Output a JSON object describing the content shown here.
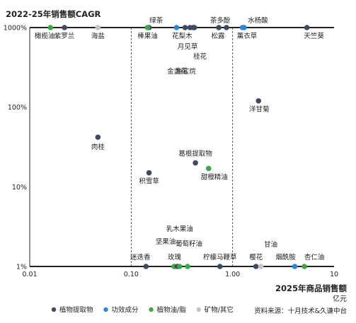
{
  "chart_data": {
    "type": "scatter",
    "ylabel": "2022-25年销售额CAGR",
    "xlabel": "2025年商品销售额",
    "xunit": "亿元",
    "xscale": "log",
    "yscale": "log",
    "xlim": [
      0.01,
      10
    ],
    "ylim": [
      1,
      1000
    ],
    "xticks": [
      {
        "v": 0.01,
        "label": "0.01"
      },
      {
        "v": 0.1,
        "label": "0.10"
      },
      {
        "v": 1,
        "label": "1.00"
      },
      {
        "v": 10,
        "label": "10"
      }
    ],
    "yticks": [
      {
        "v": 1,
        "label": "1%"
      },
      {
        "v": 10,
        "label": "10%"
      },
      {
        "v": 100,
        "label": "100%"
      },
      {
        "v": 1000,
        "label": "1000%"
      }
    ],
    "reference_lines_x": [
      0.1,
      1
    ],
    "series": [
      {
        "name": "植物提取物",
        "color": "#3d4a63"
      },
      {
        "name": "功效成分",
        "color": "#2e86d6"
      },
      {
        "name": "植物油/脂",
        "color": "#3aa845"
      },
      {
        "name": "矿物/其它",
        "color": "#c4c4c4"
      }
    ],
    "points": [
      {
        "label": "橄榄油",
        "x": 0.016,
        "y": 1000,
        "series": "植物油/脂"
      },
      {
        "label": "紫罗兰",
        "x": 0.022,
        "y": 1000,
        "series": "植物提取物"
      },
      {
        "label": "海盐",
        "x": 0.047,
        "y": 1000,
        "series": "矿物/其它"
      },
      {
        "label": "绿茶",
        "x": 0.15,
        "y": 1000,
        "series": "植物提取物"
      },
      {
        "label": "棒果油",
        "x": 0.145,
        "y": 1000,
        "series": "植物油/脂"
      },
      {
        "label": "花梨木",
        "x": 0.28,
        "y": 1000,
        "series": "功效成分"
      },
      {
        "label": "金盏花",
        "x": 0.34,
        "y": 1000,
        "series": "植物提取物"
      },
      {
        "label": "角鲨烷",
        "x": 0.38,
        "y": 1000,
        "series": "植物提取物"
      },
      {
        "label": "月见草",
        "x": 0.41,
        "y": 1000,
        "series": "植物提取物"
      },
      {
        "label": "桂花",
        "x": 0.42,
        "y": 1000,
        "series": "植物提取物"
      },
      {
        "label": "茶多酚",
        "x": 0.73,
        "y": 1000,
        "series": "植物提取物"
      },
      {
        "label": "松露",
        "x": 0.87,
        "y": 1000,
        "series": "植物提取物"
      },
      {
        "label": "水杨酸",
        "x": 1.25,
        "y": 1000,
        "series": "功效成分"
      },
      {
        "label": "薰衣草",
        "x": 1.3,
        "y": 1000,
        "series": "功效成分"
      },
      {
        "label": "天竺葵",
        "x": 5.4,
        "y": 1000,
        "series": "植物提取物"
      },
      {
        "label": "洋甘菊",
        "x": 1.8,
        "y": 120,
        "series": "植物提取物"
      },
      {
        "label": "肉桂",
        "x": 0.047,
        "y": 42,
        "series": "植物提取物"
      },
      {
        "label": "葛根提取物",
        "x": 0.43,
        "y": 20,
        "series": "植物提取物"
      },
      {
        "label": "甜橙精油",
        "x": 0.58,
        "y": 17,
        "series": "植物油/脂"
      },
      {
        "label": "积雪草",
        "x": 0.15,
        "y": 15,
        "series": "植物提取物"
      },
      {
        "label": "迷迭香",
        "x": 0.14,
        "y": 1,
        "series": "植物提取物"
      },
      {
        "label": "坚果油",
        "x": 0.265,
        "y": 1,
        "series": "植物油/脂"
      },
      {
        "label": "玫瑰",
        "x": 0.285,
        "y": 1,
        "series": "植物提取物"
      },
      {
        "label": "乳木果油",
        "x": 0.3,
        "y": 1,
        "series": "植物油/脂"
      },
      {
        "label": "葡萄籽油",
        "x": 0.36,
        "y": 1,
        "series": "植物油/脂"
      },
      {
        "label": "柠檬马鞭草",
        "x": 0.75,
        "y": 1,
        "series": "植物提取物"
      },
      {
        "label": "樱花",
        "x": 1.7,
        "y": 1,
        "series": "植物提取物"
      },
      {
        "label": "甘油",
        "x": 1.9,
        "y": 1,
        "series": "矿物/其它"
      },
      {
        "label": "烟酰胺",
        "x": 4.1,
        "y": 1,
        "series": "功效成分"
      },
      {
        "label": "杏仁油",
        "x": 5.1,
        "y": 1,
        "series": "植物油/脂"
      }
    ]
  },
  "source": "资料来源：十月技术&久谦中台"
}
